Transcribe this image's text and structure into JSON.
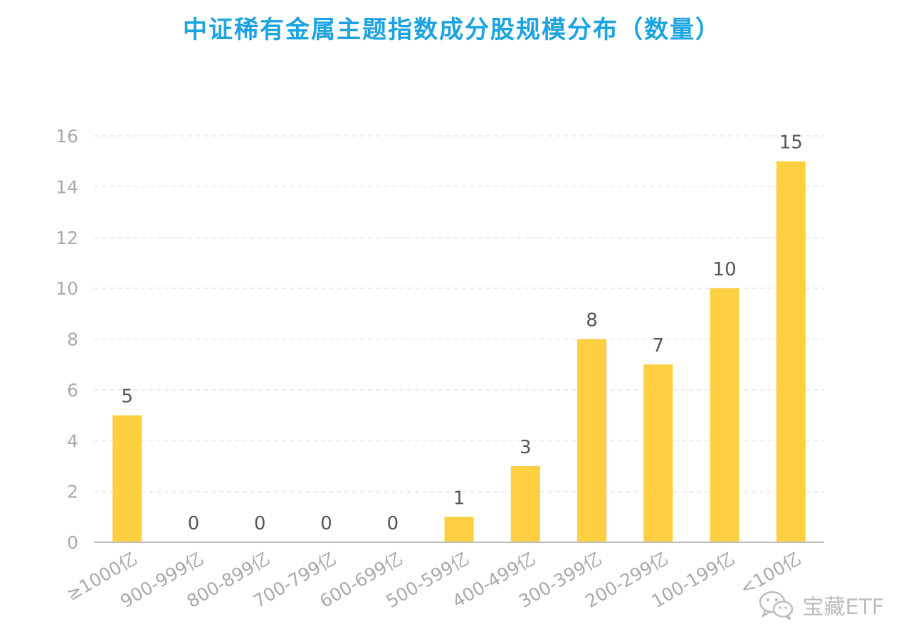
{
  "chart_data": {
    "type": "bar",
    "title": "中证稀有金属主题指数成分股规模分布（数量）",
    "categories": [
      "≥1000亿",
      "900-999亿",
      "800-899亿",
      "700-799亿",
      "600-699亿",
      "500-599亿",
      "400-499亿",
      "300-399亿",
      "200-299亿",
      "100-199亿",
      "<100亿"
    ],
    "values": [
      5,
      0,
      0,
      0,
      0,
      1,
      3,
      8,
      7,
      10,
      15
    ],
    "ylim": [
      0,
      16
    ],
    "yticks": [
      0,
      2,
      4,
      6,
      8,
      10,
      12,
      14,
      16
    ],
    "grid": true,
    "legend": "none",
    "xlabel": "",
    "ylabel": ""
  },
  "colors": {
    "title": "#1aa3e0",
    "bar": "#fecf40",
    "tick_label": "#aaaaaa",
    "data_label": "#555555",
    "grid": "#e4e8ee",
    "axis": "#bfbfbf"
  },
  "watermark": {
    "icon": "wechat-icon",
    "text": "宝藏ETF"
  }
}
